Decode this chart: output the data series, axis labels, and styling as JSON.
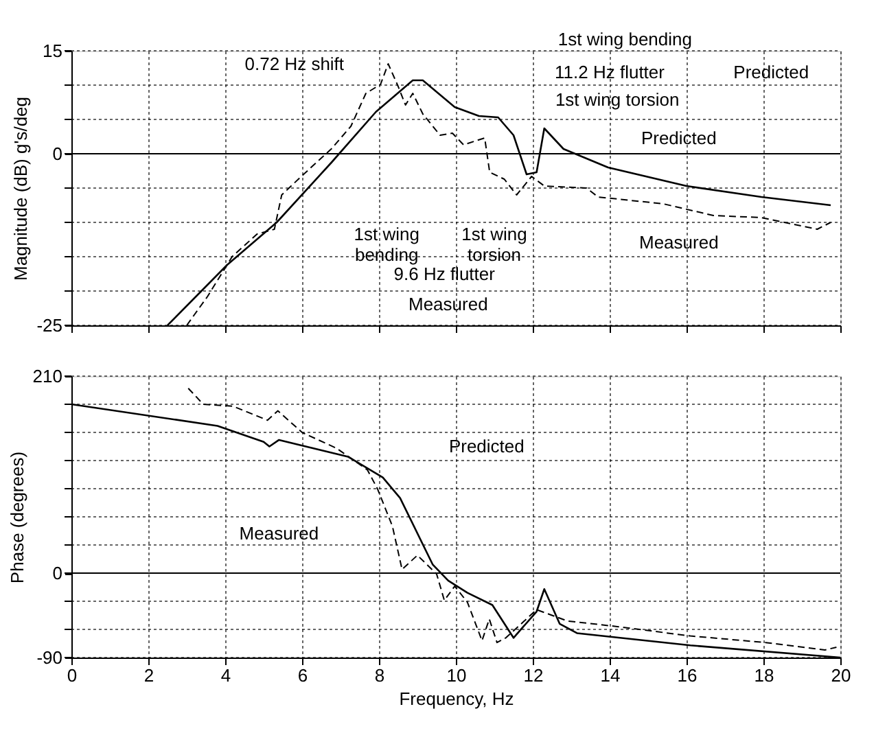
{
  "chart_data": [
    {
      "type": "line",
      "ylabel": "Magnitude (dB) g's/deg",
      "xlim": [
        0,
        20
      ],
      "xticks": [
        {
          "value": 0,
          "label": null
        },
        {
          "value": 2,
          "label": null
        },
        {
          "value": 4,
          "label": null
        },
        {
          "value": 6,
          "label": null
        },
        {
          "value": 8,
          "label": null
        },
        {
          "value": 10,
          "label": null
        },
        {
          "value": 12,
          "label": null
        },
        {
          "value": 14,
          "label": null
        },
        {
          "value": 16,
          "label": null
        },
        {
          "value": 18,
          "label": null
        },
        {
          "value": 20,
          "label": null
        }
      ],
      "ylim": [
        -25,
        15
      ],
      "yticks": [
        15,
        {
          "value": 10,
          "label": null
        },
        {
          "value": 5,
          "label": null
        },
        0,
        {
          "value": -5,
          "label": null
        },
        {
          "value": -10,
          "label": null
        },
        {
          "value": -15,
          "label": null
        },
        {
          "value": -20,
          "label": null
        },
        -25
      ],
      "tick_labels": "y",
      "grid": true,
      "ref_lines": [
        {
          "axis": "y",
          "value": 0,
          "color": "#000000",
          "line_style": "solid"
        }
      ],
      "series": [
        {
          "color": "#000000",
          "line_style": "solid",
          "x": [
            2.5,
            4.05,
            5.34,
            6.76,
            7.92,
            8.88,
            9.14,
            9.97,
            10.6,
            11.1,
            11.5,
            11.84,
            12.1,
            12.3,
            12.8,
            13.96,
            16.0,
            17.95,
            19.75
          ],
          "values": [
            -25,
            -16.2,
            -10,
            -1.3,
            6.1,
            10.7,
            10.7,
            6.8,
            5.5,
            5.3,
            2.7,
            -3,
            -2.7,
            3.7,
            0.7,
            -2,
            -4.7,
            -6.3,
            -7.5
          ]
        },
        {
          "color": "#000000",
          "line_style": "dashed",
          "x": [
            3.0,
            3.54,
            4.18,
            4.83,
            5.28,
            5.47,
            5.98,
            6.76,
            7.27,
            7.66,
            8.04,
            8.24,
            8.5,
            8.69,
            8.88,
            9.14,
            9.59,
            9.91,
            10.2,
            10.75,
            10.88,
            11.26,
            11.58,
            11.97,
            12.3,
            13.4,
            13.7,
            15.4,
            16.7,
            17.95,
            19.4,
            19.75
          ],
          "values": [
            -25,
            -20.8,
            -15,
            -11.7,
            -11,
            -6,
            -3.3,
            0.7,
            4,
            8.8,
            10.1,
            13.1,
            9.8,
            7.1,
            8.8,
            5.8,
            2.7,
            3,
            1.3,
            2.3,
            -2.7,
            -3.7,
            -6,
            -3.3,
            -4.7,
            -5,
            -6.3,
            -7.3,
            -9,
            -9.3,
            -11,
            -10
          ]
        }
      ],
      "annotations": [
        "0.72 Hz shift",
        "1st wing bending",
        "11.2 Hz flutter",
        "1st wing torsion",
        "Predicted",
        "Predicted",
        "1st wing\nbending",
        "1st wing\ntorsion",
        "9.6 Hz flutter",
        "Measured",
        "Measured"
      ]
    },
    {
      "type": "line",
      "xlabel": "Frequency, Hz",
      "ylabel": "Phase (degrees)",
      "xlim": [
        0,
        20
      ],
      "xticks": [
        0,
        2,
        4,
        6,
        8,
        10,
        12,
        14,
        16,
        18,
        20
      ],
      "ylim": [
        -90,
        210
      ],
      "yticks": [
        210,
        {
          "value": 180,
          "label": null
        },
        {
          "value": 150,
          "label": null
        },
        {
          "value": 120,
          "label": null
        },
        {
          "value": 90,
          "label": null
        },
        {
          "value": 60,
          "label": null
        },
        {
          "value": 30,
          "label": null
        },
        0,
        {
          "value": -30,
          "label": null
        },
        {
          "value": -60,
          "label": null
        },
        -90
      ],
      "grid": true,
      "ref_lines": [
        {
          "axis": "y",
          "value": 0,
          "color": "#000000",
          "line_style": "solid"
        }
      ],
      "series": [
        {
          "color": "#000000",
          "line_style": "solid",
          "x": [
            0,
            3.8,
            5.0,
            5.15,
            5.4,
            7.2,
            8.1,
            8.55,
            9.4,
            9.8,
            10.3,
            10.95,
            11.5,
            12.1,
            12.3,
            12.7,
            13.15,
            16.1,
            20
          ],
          "values": [
            180,
            157,
            140,
            135,
            142,
            124,
            102,
            80,
            9,
            -8,
            -21,
            -34,
            -69,
            -41,
            -17,
            -54,
            -64,
            -77,
            -90
          ]
        },
        {
          "color": "#000000",
          "line_style": "dashed",
          "x": [
            3.04,
            3.43,
            4.2,
            5.1,
            5.37,
            6.0,
            6.9,
            7.7,
            7.96,
            8.35,
            8.6,
            9.0,
            9.5,
            9.7,
            9.97,
            10.3,
            10.68,
            10.87,
            11.07,
            11.3,
            12.1,
            12.9,
            14.2,
            16.1,
            18.06,
            19.6,
            19.9
          ],
          "values": [
            197,
            180,
            178,
            163,
            173,
            150,
            133,
            110,
            90,
            50,
            4,
            19,
            -1,
            -29,
            -14,
            -31,
            -72,
            -49,
            -74,
            -69,
            -39,
            -51,
            -57,
            -67,
            -74,
            -82,
            -79
          ]
        }
      ],
      "annotations": [
        "Predicted",
        "Measured"
      ]
    }
  ]
}
